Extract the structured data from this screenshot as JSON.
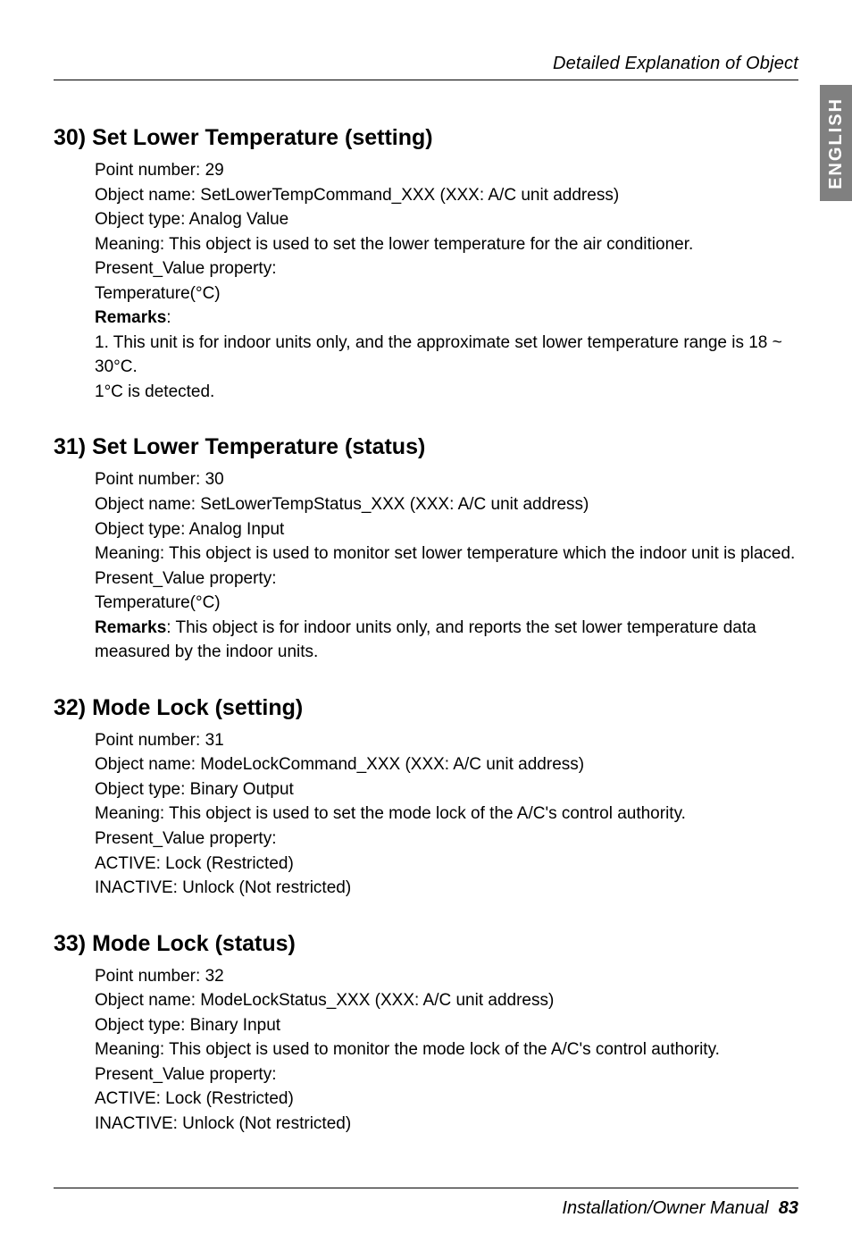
{
  "header": {
    "text": "Detailed Explanation of Object"
  },
  "sidetab": {
    "label": "ENGLISH"
  },
  "sections": [
    {
      "title": "30) Set Lower Temperature (setting)",
      "lines": [
        "Point number: 29",
        "Object name: SetLowerTempCommand_XXX (XXX: A/C unit address)",
        "Object type: Analog Value",
        "Meaning: This object is used to set  the lower temperature for the air conditioner.",
        "Present_Value property:",
        "Temperature(°C)",
        "1. This unit is for indoor units only, and the approximate set lower temperature range is 18 ~ 30°C.",
        "1°C is detected."
      ],
      "remarks_label": "Remarks",
      "remarks_colon": ":"
    },
    {
      "title": "31) Set Lower Temperature (status)",
      "lines": [
        "Point number: 30",
        "Object name: SetLowerTempStatus_XXX (XXX: A/C unit address)",
        "Object type: Analog Input",
        "Meaning: This object is used to monitor set lower temperature which the indoor unit is placed.",
        "Present_Value property:",
        "Temperature(°C)",
        "measured by the indoor units."
      ],
      "remarks_label": "Remarks",
      "remarks_tail": ": This object is for indoor units only, and reports the set lower temperature data"
    },
    {
      "title": "32) Mode Lock (setting)",
      "lines": [
        "Point number: 31",
        "Object name: ModeLockCommand_XXX (XXX: A/C unit address)",
        "Object type: Binary Output",
        "Meaning: This object is used to set the mode lock of the A/C's control authority.",
        "Present_Value property:",
        "ACTIVE: Lock (Restricted)",
        "INACTIVE: Unlock (Not restricted)"
      ]
    },
    {
      "title": "33) Mode Lock (status)",
      "lines": [
        "Point number: 32",
        "Object name: ModeLockStatus_XXX (XXX: A/C unit address)",
        "Object type: Binary Input",
        "Meaning: This object is used to monitor the mode lock of the A/C's control authority.",
        "Present_Value property:",
        "ACTIVE: Lock (Restricted)",
        "INACTIVE: Unlock (Not restricted)"
      ]
    }
  ],
  "footer": {
    "text": "Installation/Owner Manual",
    "page": "83"
  }
}
